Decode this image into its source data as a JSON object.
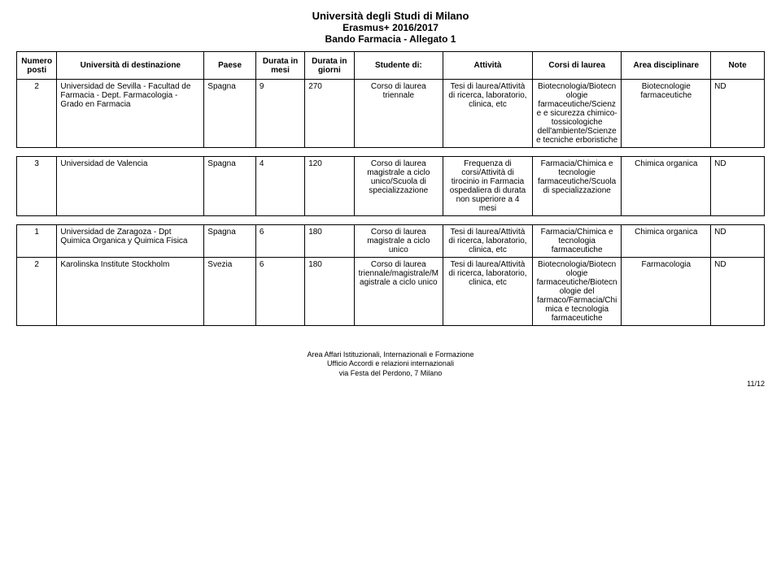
{
  "header": {
    "line1": "Università degli Studi di Milano",
    "line2": "Erasmus+ 2016/2017",
    "line3": "Bando Farmacia - Allegato 1"
  },
  "columns": {
    "c0": "Numero posti",
    "c1": "Università di destinazione",
    "c2": "Paese",
    "c3": "Durata in mesi",
    "c4": "Durata in giorni",
    "c5": "Studente di:",
    "c6": "Attività",
    "c7": "Corsi di laurea",
    "c8": "Area disciplinare",
    "c9": "Note"
  },
  "rows": {
    "r0": {
      "num": "2",
      "uni": "Universidad de Sevilla - Facultad de Farmacia - Dept. Farmacologia - Grado en Farmacia",
      "paese": "Spagna",
      "mesi": "9",
      "giorni": "270",
      "studente": "Corso di laurea triennale",
      "attivita": "Tesi di laurea/Attività di ricerca, laboratorio, clinica, etc",
      "corsi": "Biotecnologia/Biotecnologie farmaceutiche/Scienze e sicurezza chimico-tossicologiche dell'ambiente/Scienze e tecniche erboristiche",
      "area": "Biotecnologie farmaceutiche",
      "note": "ND"
    },
    "r1": {
      "num": "3",
      "uni": "Universidad de Valencia",
      "paese": "Spagna",
      "mesi": "4",
      "giorni": "120",
      "studente": "Corso di laurea magistrale a ciclo unico/Scuola di specializzazione",
      "attivita": "Frequenza di corsi/Attività di tirocinio in Farmacia ospedaliera di durata non superiore a 4 mesi",
      "corsi": "Farmacia/Chimica e tecnologie farmaceutiche/Scuola di specializzazione",
      "area": "Chimica organica",
      "note": "ND"
    },
    "r2": {
      "num": "1",
      "uni": "Universidad de Zaragoza - Dpt Quimica Organica y Quimica Fisica",
      "paese": "Spagna",
      "mesi": "6",
      "giorni": "180",
      "studente": "Corso di laurea magistrale a ciclo unico",
      "attivita": "Tesi di laurea/Attività di ricerca, laboratorio, clinica, etc",
      "corsi": "Farmacia/Chimica e tecnologia farmaceutiche",
      "area": "Chimica organica",
      "note": "ND"
    },
    "r3": {
      "num": "2",
      "uni": "Karolinska Institute Stockholm",
      "paese": "Svezia",
      "mesi": "6",
      "giorni": "180",
      "studente": "Corso di laurea triennale/magistrale/Magistrale a ciclo unico",
      "attivita": "Tesi di laurea/Attività di ricerca, laboratorio, clinica, etc",
      "corsi": "Biotecnologia/Biotecnologie farmaceutiche/Biotecnologie del farmaco/Farmacia/Chimica e tecnologia farmaceutiche",
      "area": "Farmacologia",
      "note": "ND"
    }
  },
  "footer": {
    "line1": "Area Affari Istituzionali, Internazionali e Formazione",
    "line2": "Ufficio Accordi e relazioni internazionali",
    "line3": "via Festa del Perdono, 7 Milano"
  },
  "pagenum": "11/12"
}
